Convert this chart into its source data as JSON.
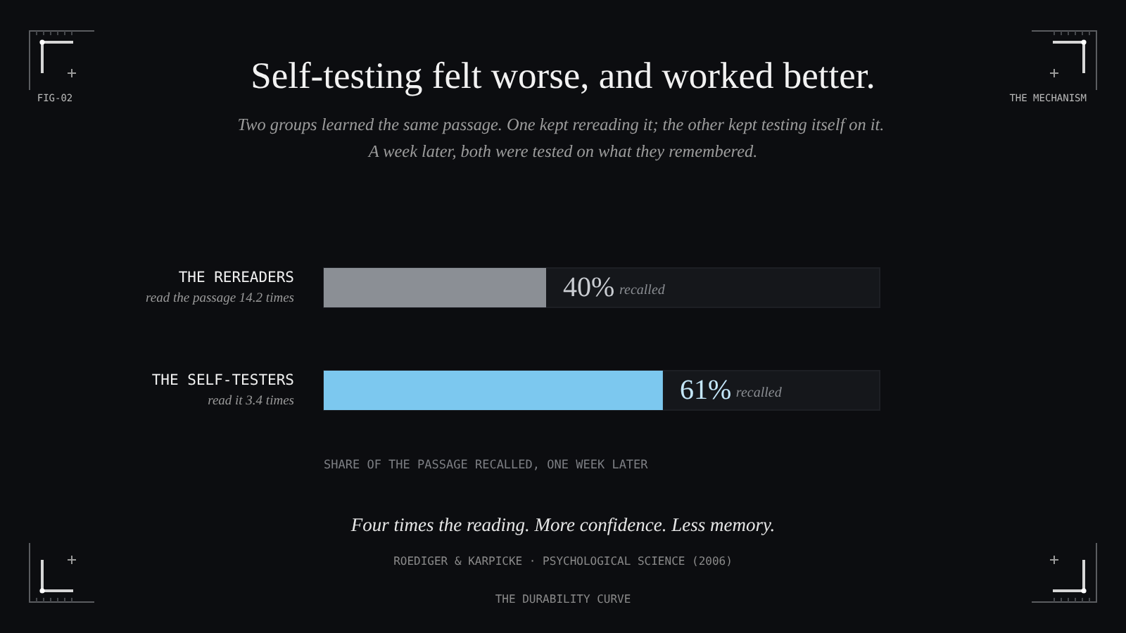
{
  "chart_data": {
    "type": "bar",
    "orientation": "horizontal",
    "title": "Self-testing felt worse, and worked better.",
    "subtitle": "Two groups learned the same passage. One kept rereading it; the other kept testing itself on it. A week later, both were tested on what they remembered.",
    "categories": [
      "THE REREADERS",
      "THE SELF-TESTERS"
    ],
    "values": [
      40,
      61
    ],
    "colors": [
      "#8b8f95",
      "#7cc8ef"
    ],
    "value_labels": [
      "40% recalled",
      "61% recalled"
    ],
    "xlim": [
      0,
      100
    ],
    "xlabel": "SHARE OF THE PASSAGE RECALLED, ONE WEEK LATER",
    "tick_labels": "y",
    "annotations": [
      "FIG-02",
      "THE MECHANISM",
      "read the passage 14.2 times",
      "read it 3.4 times",
      "Four times the reading. More confidence. Less memory.",
      "ROEDIGER & KARPICKE · PSYCHOLOGICAL SCIENCE (2006)",
      "THE DURABILITY CURVE"
    ]
  }
}
